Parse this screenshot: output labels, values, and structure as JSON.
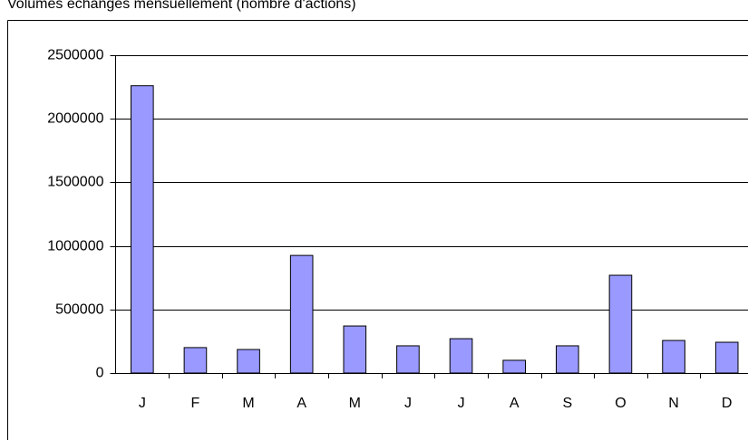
{
  "chart_data": {
    "type": "bar",
    "title": "Volumes échangés mensuellement (nombre d'actions)",
    "categories": [
      "J",
      "F",
      "M",
      "A",
      "M",
      "J",
      "J",
      "A",
      "S",
      "O",
      "N",
      "D"
    ],
    "values": [
      2260000,
      200000,
      185000,
      925000,
      370000,
      214000,
      270000,
      100000,
      214000,
      769000,
      256000,
      242000
    ],
    "color": "#9999ff",
    "ylim": [
      0,
      2500000
    ],
    "yticks": [
      0,
      500000,
      1000000,
      1500000,
      2000000,
      2500000
    ],
    "grid": true
  }
}
